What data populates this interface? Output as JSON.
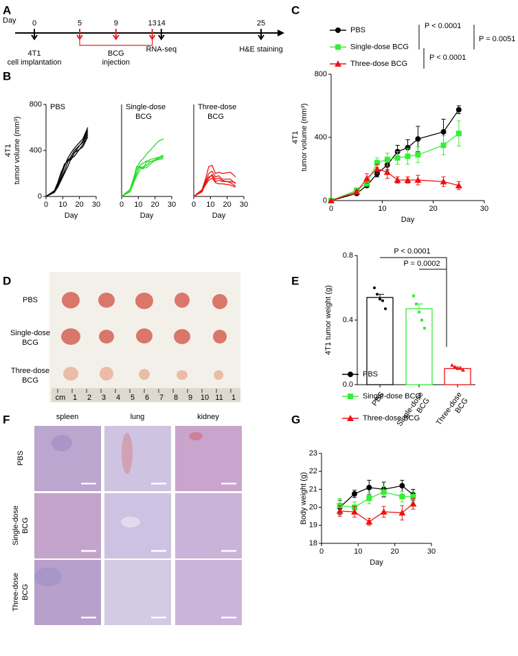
{
  "panel_labels": [
    "A",
    "B",
    "C",
    "D",
    "E",
    "F",
    "G"
  ],
  "timeline": {
    "axis_label": "Day",
    "days": [
      0,
      5,
      9,
      13,
      14,
      25
    ],
    "injection_days": [
      5,
      9,
      13
    ],
    "injection_label": [
      "BCG",
      "injection"
    ],
    "events": [
      {
        "day": 0,
        "lines": [
          "4T1",
          "cell implantation"
        ]
      },
      {
        "day": 14,
        "lines": [
          "RNA-seq"
        ]
      },
      {
        "day": 25,
        "lines": [
          "H&E staining"
        ]
      }
    ]
  },
  "chart_data": [
    {
      "type": "line",
      "title_lines": [
        "PBS"
      ],
      "x_label": "Day",
      "y_label_lines": [
        "4T1",
        "tumor volume (mm³)"
      ],
      "x": [
        0,
        5,
        7,
        9,
        11,
        13,
        15,
        17,
        22,
        25
      ],
      "xlim": [
        0,
        30
      ],
      "xticks": [
        0,
        10,
        20,
        30
      ],
      "ylim": [
        0,
        800
      ],
      "yticks": [
        0,
        400,
        800
      ],
      "series": [
        {
          "color": "#000000",
          "values": [
            0,
            40,
            90,
            170,
            260,
            330,
            380,
            420,
            500,
            600
          ]
        },
        {
          "color": "#000000",
          "values": [
            0,
            50,
            100,
            150,
            220,
            300,
            350,
            400,
            470,
            560
          ]
        },
        {
          "color": "#000000",
          "values": [
            0,
            45,
            110,
            200,
            280,
            310,
            320,
            380,
            430,
            520
          ]
        },
        {
          "color": "#000000",
          "values": [
            0,
            35,
            80,
            140,
            200,
            260,
            330,
            380,
            480,
            580
          ]
        },
        {
          "color": "#000000",
          "values": [
            0,
            50,
            120,
            210,
            270,
            320,
            330,
            350,
            450,
            540
          ]
        }
      ]
    },
    {
      "type": "line",
      "title_lines": [
        "Single-dose",
        "BCG"
      ],
      "x_label": "Day",
      "x": [
        0,
        5,
        7,
        9,
        11,
        13,
        15,
        17,
        22,
        25
      ],
      "xlim": [
        0,
        30
      ],
      "xticks": [
        0,
        10,
        20,
        30
      ],
      "ylim": [
        0,
        800
      ],
      "series": [
        {
          "color": "#22dd22",
          "values": [
            0,
            60,
            150,
            250,
            300,
            330,
            370,
            400,
            480,
            500
          ]
        },
        {
          "color": "#22dd22",
          "values": [
            0,
            50,
            120,
            200,
            260,
            250,
            250,
            280,
            340,
            350
          ]
        },
        {
          "color": "#22dd22",
          "values": [
            0,
            55,
            130,
            230,
            270,
            290,
            310,
            300,
            330,
            340
          ]
        },
        {
          "color": "#22dd22",
          "values": [
            0,
            40,
            110,
            180,
            230,
            260,
            270,
            300,
            320,
            330
          ]
        },
        {
          "color": "#22dd22",
          "values": [
            0,
            60,
            140,
            260,
            250,
            240,
            300,
            320,
            340,
            360
          ]
        }
      ]
    },
    {
      "type": "line",
      "title_lines": [
        "Three-dose",
        "BCG"
      ],
      "x_label": "Day",
      "x": [
        0,
        5,
        7,
        9,
        11,
        13,
        15,
        17,
        22,
        25
      ],
      "xlim": [
        0,
        30
      ],
      "xticks": [
        0,
        10,
        20,
        30
      ],
      "ylim": [
        0,
        800
      ],
      "series": [
        {
          "color": "#ee1111",
          "values": [
            0,
            60,
            150,
            260,
            270,
            200,
            210,
            200,
            210,
            170
          ]
        },
        {
          "color": "#ee1111",
          "values": [
            0,
            50,
            130,
            200,
            220,
            170,
            180,
            150,
            150,
            110
          ]
        },
        {
          "color": "#ee1111",
          "values": [
            0,
            40,
            110,
            160,
            190,
            150,
            160,
            140,
            120,
            90
          ]
        },
        {
          "color": "#ee1111",
          "values": [
            0,
            50,
            120,
            170,
            180,
            130,
            140,
            130,
            130,
            120
          ]
        },
        {
          "color": "#ee1111",
          "values": [
            0,
            45,
            100,
            140,
            160,
            120,
            110,
            110,
            100,
            80
          ]
        }
      ]
    },
    {
      "type": "line",
      "x_label": "Day",
      "y_label_lines": [
        "4T1",
        "tumor volume (mm³)"
      ],
      "x": [
        0,
        5,
        7,
        9,
        11,
        13,
        15,
        17,
        22,
        25
      ],
      "xlim": [
        0,
        30
      ],
      "xticks": [
        0,
        10,
        20,
        30
      ],
      "ylim": [
        0,
        800
      ],
      "yticks": [
        0,
        400,
        800
      ],
      "series": [
        {
          "name": "PBS",
          "color": "#000000",
          "marker": "circle",
          "values": [
            0,
            45,
            95,
            170,
            225,
            310,
            335,
            390,
            435,
            575
          ],
          "errors": [
            0,
            5,
            10,
            20,
            30,
            40,
            50,
            80,
            80,
            25
          ]
        },
        {
          "name": "Single-dose BCG",
          "color": "#33ee33",
          "marker": "square",
          "values": [
            0,
            65,
            110,
            240,
            260,
            270,
            280,
            290,
            350,
            425
          ],
          "errors": [
            0,
            10,
            20,
            30,
            40,
            40,
            50,
            50,
            60,
            80
          ]
        },
        {
          "name": "Three-dose BCG",
          "color": "#ee1111",
          "marker": "triangle",
          "values": [
            0,
            55,
            140,
            200,
            180,
            130,
            130,
            130,
            120,
            95
          ],
          "errors": [
            0,
            10,
            30,
            30,
            40,
            20,
            20,
            30,
            30,
            25
          ]
        }
      ],
      "annotations": [
        "P < 0.0001",
        "P < 0.0001",
        "P = 0.0051"
      ]
    },
    {
      "type": "bar",
      "y_label": "4T1 tumor weight (g)",
      "categories": [
        [
          "PBS"
        ],
        [
          "Single-dose",
          "BCG"
        ],
        [
          "Three-dose",
          "BCG"
        ]
      ],
      "values": [
        0.54,
        0.47,
        0.1
      ],
      "errors": [
        0.02,
        0.03,
        0.01
      ],
      "colors": [
        "#000000",
        "#33ee33",
        "#ee1111"
      ],
      "points": [
        [
          0.6,
          0.56,
          0.53,
          0.52,
          0.47
        ],
        [
          0.55,
          0.5,
          0.45,
          0.4,
          0.35
        ],
        [
          0.12,
          0.11,
          0.1,
          0.1,
          0.09
        ]
      ],
      "ylim": [
        0,
        0.8
      ],
      "yticks": [
        {
          "value": 0,
          "label": "0.0"
        },
        0.4,
        0.8
      ],
      "annotations": [
        "P < 0.0001",
        "P = 0.0002"
      ]
    },
    {
      "type": "line",
      "x_label": "Day",
      "y_label_lines": [
        "Body weight (g)"
      ],
      "x": [
        5,
        9,
        13,
        17,
        22,
        25
      ],
      "xlim": [
        0,
        30
      ],
      "xticks": [
        0,
        10,
        20,
        30
      ],
      "ylim": [
        18,
        23
      ],
      "yticks": [
        18,
        19,
        20,
        21,
        22,
        23
      ],
      "series": [
        {
          "name": "PBS",
          "color": "#000000",
          "marker": "circle",
          "values": [
            20.0,
            20.75,
            21.1,
            21.0,
            21.2,
            20.7
          ],
          "errors": [
            0.4,
            0.2,
            0.4,
            0.4,
            0.3,
            0.3
          ]
        },
        {
          "name": "Single-dose BCG",
          "color": "#33ee33",
          "marker": "square",
          "values": [
            20.1,
            20.0,
            20.5,
            20.85,
            20.6,
            20.6
          ],
          "errors": [
            0.4,
            0.3,
            0.3,
            0.3,
            0.3,
            0.3
          ]
        },
        {
          "name": "Three-dose BCG",
          "color": "#ee1111",
          "marker": "triangle",
          "values": [
            19.8,
            19.75,
            19.2,
            19.75,
            19.7,
            20.2
          ],
          "errors": [
            0.3,
            0.3,
            0.2,
            0.3,
            0.4,
            0.3
          ]
        }
      ]
    }
  ],
  "photo": {
    "row_labels": [
      [
        "PBS"
      ],
      [
        "Single-dose",
        "BCG"
      ],
      [
        "Three-dose",
        "BCG"
      ]
    ],
    "ruler_labels": [
      "cm",
      "1",
      "2",
      "3",
      "4",
      "5",
      "6",
      "7",
      "8",
      "9",
      "10",
      "11",
      "1"
    ]
  },
  "histology": {
    "columns": [
      "spleen",
      "lung",
      "kidney"
    ],
    "rows": [
      [
        "PBS"
      ],
      [
        "Single-dose",
        "BCG"
      ],
      [
        "Three-dose",
        "BCG"
      ]
    ]
  }
}
